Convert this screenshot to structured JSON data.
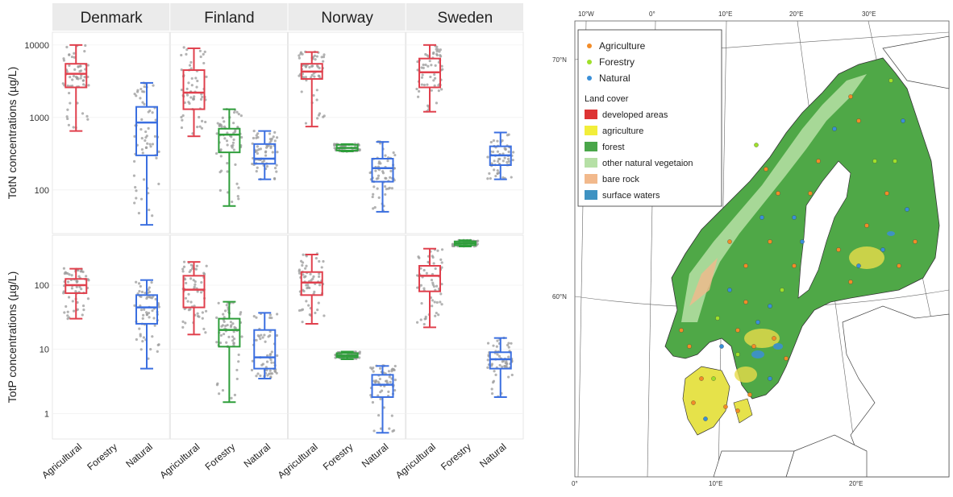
{
  "chart_data": {
    "type": "box",
    "facets": [
      "Denmark",
      "Finland",
      "Norway",
      "Sweden"
    ],
    "categories": [
      "Agricultural",
      "Forestry",
      "Natural"
    ],
    "category_colors": {
      "Agricultural": "#e0404d",
      "Forestry": "#2e9e3a",
      "Natural": "#3b6fe0"
    },
    "scale": "log",
    "panels": [
      {
        "ylabel": "TotN concentrations (µg/L)",
        "ylim": [
          25,
          15000
        ],
        "yticks": [
          100,
          1000,
          10000
        ],
        "ytick_labels": [
          "100",
          "1000",
          "10000"
        ],
        "boxes": {
          "Denmark": {
            "Agricultural": {
              "min": 650,
              "q1": 2600,
              "median": 4000,
              "q3": 5500,
              "max": 10000
            },
            "Forestry": null,
            "Natural": {
              "min": 33,
              "q1": 300,
              "median": 850,
              "q3": 1400,
              "max": 3000
            }
          },
          "Finland": {
            "Agricultural": {
              "min": 550,
              "q1": 1300,
              "median": 2200,
              "q3": 4500,
              "max": 9000
            },
            "Forestry": {
              "min": 60,
              "q1": 330,
              "median": 580,
              "q3": 700,
              "max": 1300
            },
            "Natural": {
              "min": 140,
              "q1": 230,
              "median": 270,
              "q3": 430,
              "max": 650
            }
          },
          "Norway": {
            "Agricultural": {
              "min": 750,
              "q1": 3400,
              "median": 4300,
              "q3": 5500,
              "max": 8000
            },
            "Forestry": {
              "min": 340,
              "q1": 350,
              "median": 380,
              "q3": 420,
              "max": 430
            },
            "Natural": {
              "min": 50,
              "q1": 130,
              "median": 200,
              "q3": 270,
              "max": 460
            }
          },
          "Sweden": {
            "Agricultural": {
              "min": 1200,
              "q1": 2600,
              "median": 4200,
              "q3": 6500,
              "max": 10000
            },
            "Forestry": null,
            "Natural": {
              "min": 140,
              "q1": 220,
              "median": 300,
              "q3": 400,
              "max": 620
            }
          }
        }
      },
      {
        "ylabel": "TotP concentrations (µg/L)",
        "ylim": [
          0.4,
          600
        ],
        "yticks": [
          1,
          10,
          100
        ],
        "ytick_labels": [
          "1",
          "10",
          "100"
        ],
        "boxes": {
          "Denmark": {
            "Agricultural": {
              "min": 30,
              "q1": 75,
              "median": 100,
              "q3": 125,
              "max": 180
            },
            "Forestry": null,
            "Natural": {
              "min": 5,
              "q1": 25,
              "median": 45,
              "q3": 70,
              "max": 120
            }
          },
          "Finland": {
            "Agricultural": {
              "min": 17,
              "q1": 45,
              "median": 85,
              "q3": 140,
              "max": 230
            },
            "Forestry": {
              "min": 1.5,
              "q1": 11,
              "median": 20,
              "q3": 30,
              "max": 55
            },
            "Natural": {
              "min": 3.5,
              "q1": 5,
              "median": 7.5,
              "q3": 20,
              "max": 37
            }
          },
          "Norway": {
            "Agricultural": {
              "min": 25,
              "q1": 70,
              "median": 110,
              "q3": 160,
              "max": 300
            },
            "Forestry": {
              "min": 7,
              "q1": 7.5,
              "median": 8,
              "q3": 8.7,
              "max": 9.2
            },
            "Natural": {
              "min": 0.5,
              "q1": 1.8,
              "median": 2.8,
              "q3": 4,
              "max": 5.5
            }
          },
          "Sweden": {
            "Agricultural": {
              "min": 22,
              "q1": 80,
              "median": 140,
              "q3": 200,
              "max": 370
            },
            "Forestry": {
              "min": 400,
              "q1": 420,
              "median": 450,
              "q3": 480,
              "max": 500
            },
            "Natural": {
              "min": 1.8,
              "q1": 5,
              "median": 7,
              "q3": 9,
              "max": 15
            }
          }
        }
      }
    ]
  },
  "map": {
    "legend": {
      "points": [
        {
          "label": "Agriculture",
          "color": "#f28c28"
        },
        {
          "label": "Forestry",
          "color": "#9fe02a"
        },
        {
          "label": "Natural",
          "color": "#3a8fd8"
        }
      ],
      "land_cover_title": "Land cover",
      "land_cover": [
        {
          "label": "developed areas",
          "color": "#dd3333"
        },
        {
          "label": "agriculture",
          "color": "#f2ee3a"
        },
        {
          "label": "forest",
          "color": "#4aa64a"
        },
        {
          "label": "other natural vegetaion",
          "color": "#b6e0a6"
        },
        {
          "label": "bare rock",
          "color": "#f2b98c"
        },
        {
          "label": "surface waters",
          "color": "#3e92c2"
        }
      ]
    },
    "top_labels": [
      "10°W",
      "0°",
      "10°E",
      "20°E",
      "30°E"
    ],
    "bottom_labels": [
      "0°",
      "10°E",
      "20°E"
    ],
    "lat_labels": [
      "70°N",
      "60°N"
    ]
  }
}
